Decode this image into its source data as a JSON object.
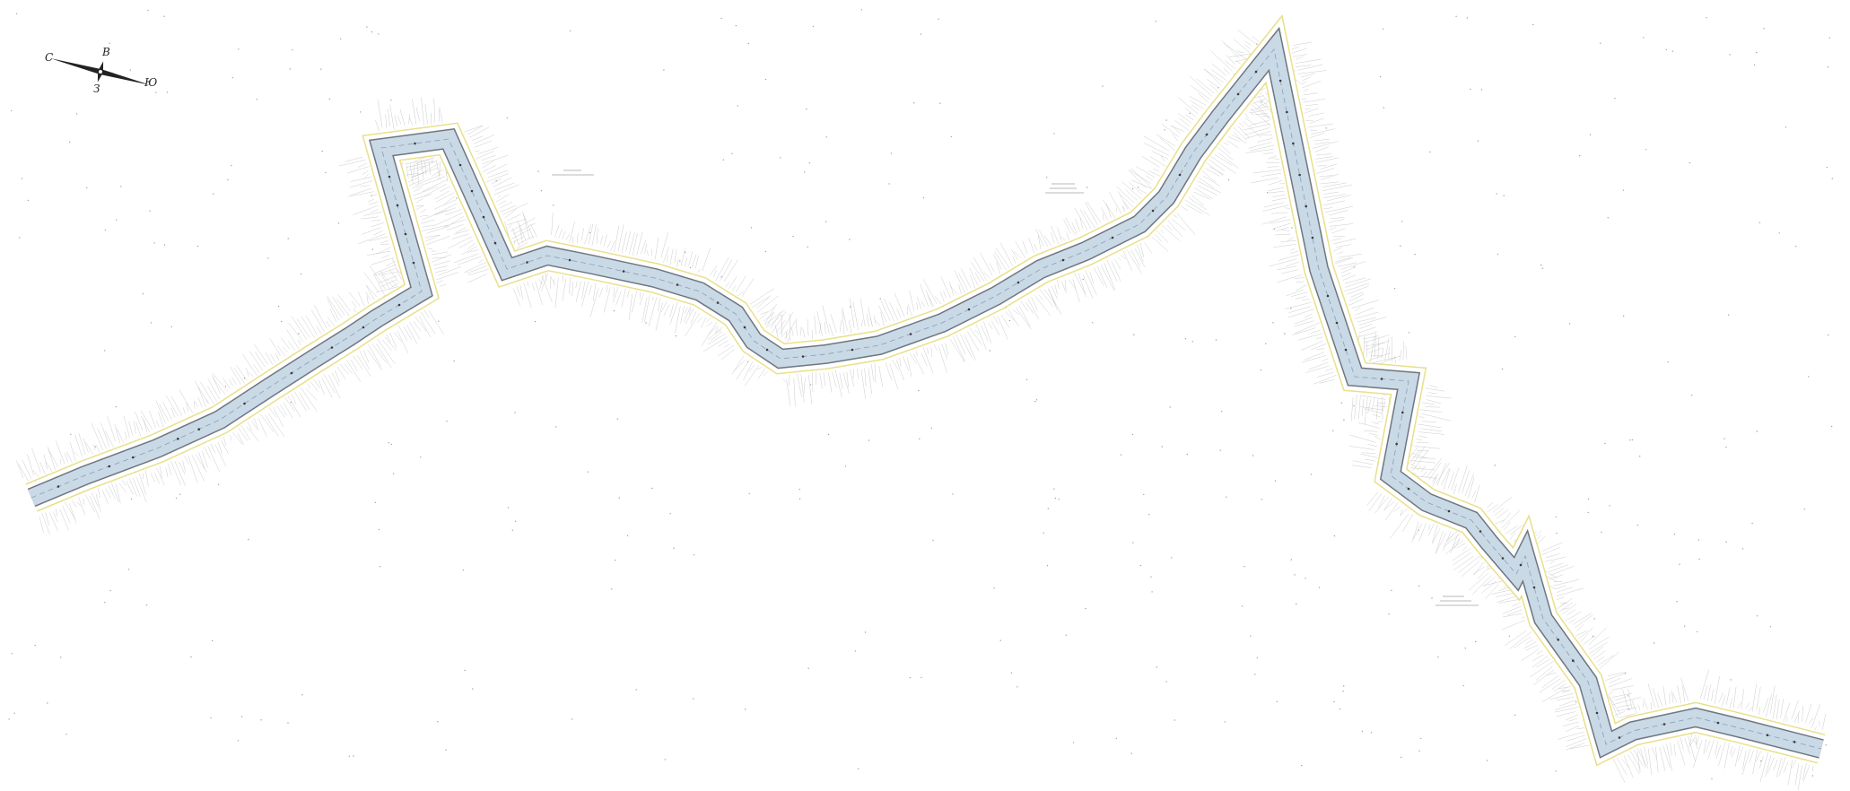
{
  "compass": {
    "north": "С",
    "south": "Ю",
    "east": "В",
    "west": "З"
  },
  "colors": {
    "route_fill": "#c9d9e6",
    "route_edge": "#555555",
    "buffer": "#e6e08a",
    "slope_hatch": "#a8a8a8",
    "scatter": "#9a9a9a"
  },
  "icons": [
    "compass-rose-icon"
  ]
}
